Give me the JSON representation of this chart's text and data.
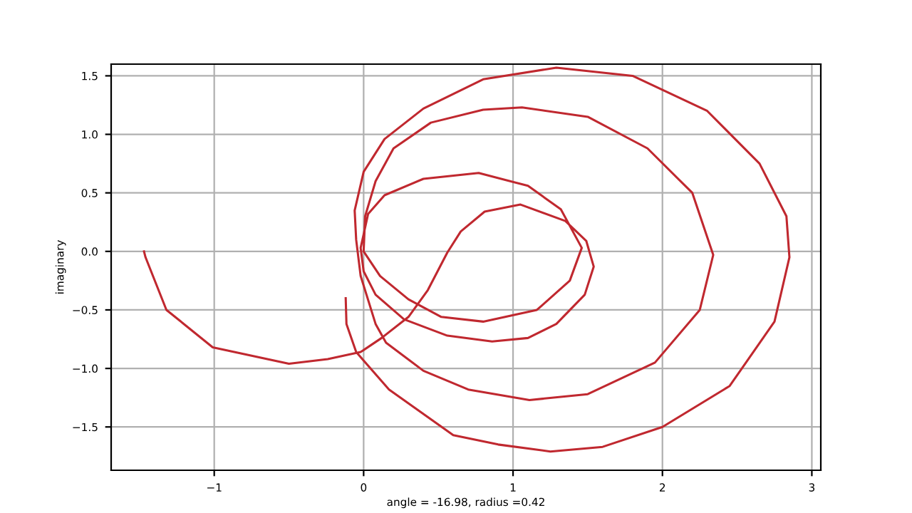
{
  "chart_data": {
    "type": "line",
    "xlabel": "angle = -16.98, radius =0.42",
    "ylabel": "imaginary",
    "xlim": [
      -1.69,
      3.06
    ],
    "ylim": [
      -1.87,
      1.6
    ],
    "xticks": [
      {
        "value": -1,
        "label": "−1"
      },
      0,
      1,
      2,
      3
    ],
    "yticks": [
      {
        "value": -1.5,
        "label": "−1.5"
      },
      {
        "value": -1.0,
        "label": "−1.0"
      },
      {
        "value": -0.5,
        "label": "−0.5"
      },
      {
        "value": 0.0,
        "label": "0.0"
      },
      {
        "value": 0.5,
        "label": "0.5"
      },
      {
        "value": 1.0,
        "label": "1.0"
      },
      {
        "value": 1.5,
        "label": "1.5"
      }
    ],
    "grid": true,
    "marker": "none",
    "line_style": "solid",
    "series": [
      {
        "color": "#c0282f",
        "x": [
          -1.47,
          -1.46,
          -1.32,
          -1.01,
          -0.5,
          -0.24,
          -0.02,
          0.12,
          0.3,
          0.43,
          0.56,
          0.65,
          0.81,
          1.05,
          1.35,
          1.49,
          1.54,
          1.48,
          1.29,
          1.1,
          0.86,
          0.56,
          0.27,
          0.08,
          0.0,
          -0.02,
          0.03,
          0.14,
          0.4,
          0.77,
          1.1,
          1.32,
          1.46,
          1.38,
          1.16,
          0.8,
          0.52,
          0.3,
          0.11,
          0.0,
          0.01,
          0.08,
          0.2,
          0.45,
          0.8,
          1.06,
          1.5,
          1.9,
          2.2,
          2.34,
          2.25,
          1.95,
          1.5,
          1.11,
          0.7,
          0.4,
          0.15,
          0.08,
          -0.02,
          -0.05,
          -0.06,
          0.0,
          0.14,
          0.4,
          0.8,
          1.29,
          1.8,
          2.3,
          2.65,
          2.83,
          2.85,
          2.75,
          2.45,
          2.0,
          1.6,
          1.25,
          0.9,
          0.6,
          0.17,
          -0.05,
          -0.115,
          -0.12
        ],
        "values": [
          0.0,
          -0.05,
          -0.5,
          -0.82,
          -0.96,
          -0.92,
          -0.86,
          -0.74,
          -0.56,
          -0.33,
          -0.01,
          0.17,
          0.34,
          0.4,
          0.26,
          0.09,
          -0.13,
          -0.37,
          -0.62,
          -0.74,
          -0.77,
          -0.72,
          -0.58,
          -0.37,
          -0.17,
          0.03,
          0.32,
          0.48,
          0.62,
          0.67,
          0.56,
          0.36,
          0.03,
          -0.25,
          -0.5,
          -0.6,
          -0.56,
          -0.41,
          -0.21,
          0.0,
          0.3,
          0.6,
          0.88,
          1.1,
          1.21,
          1.23,
          1.15,
          0.88,
          0.5,
          -0.03,
          -0.5,
          -0.95,
          -1.22,
          -1.27,
          -1.18,
          -1.02,
          -0.78,
          -0.62,
          -0.21,
          0.1,
          0.35,
          0.68,
          0.96,
          1.22,
          1.47,
          1.57,
          1.5,
          1.2,
          0.75,
          0.3,
          -0.05,
          -0.6,
          -1.15,
          -1.5,
          -1.67,
          -1.71,
          -1.65,
          -1.57,
          -1.18,
          -0.86,
          -0.62,
          -0.4
        ]
      }
    ]
  }
}
